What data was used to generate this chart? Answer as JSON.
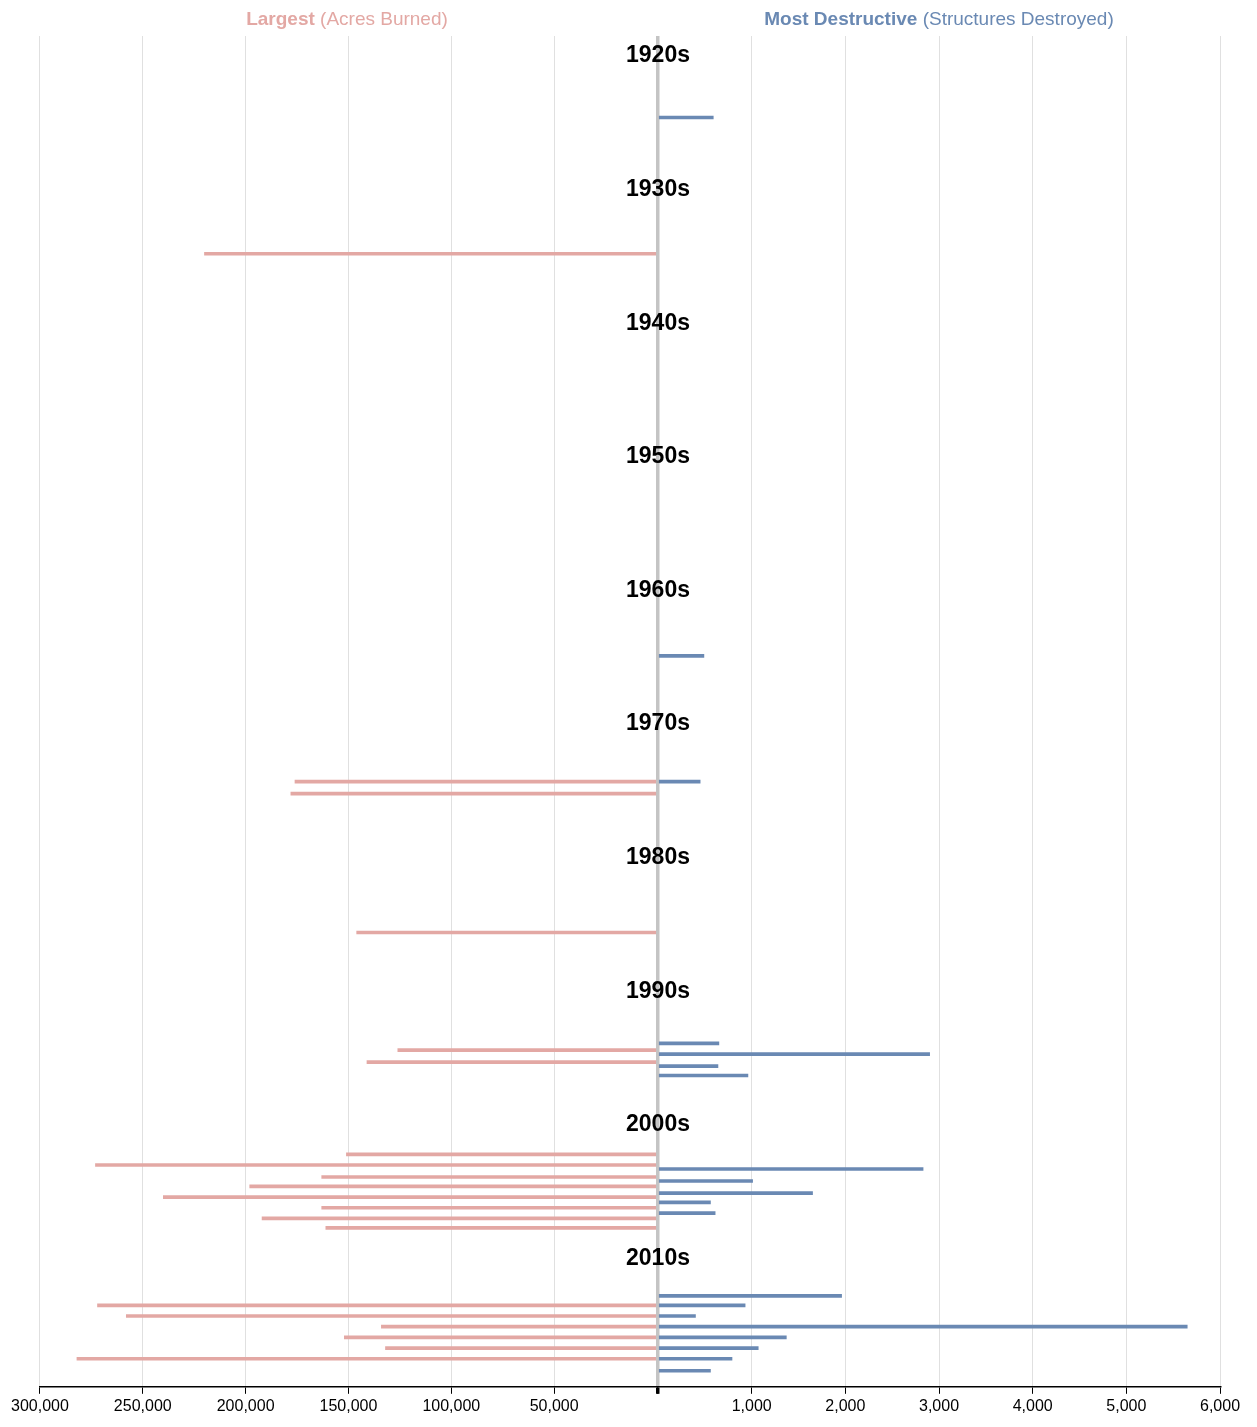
{
  "chart_data": [
    {
      "type": "bar",
      "orientation": "horizontal",
      "title": "Largest",
      "subtitle": "(Acres Burned)",
      "series": [
        {
          "color": "#e3a8a4",
          "x": [
            1934.8,
            1974.3,
            1975.2,
            1985.6,
            1994.4,
            1995.3,
            2002.2,
            2003.0,
            2003.9,
            2004.6,
            2005.4,
            2006.2,
            2007.0,
            2007.7,
            2013.5,
            2014.3,
            2015.1,
            2015.9,
            2016.7,
            2017.5
          ],
          "values": [
            220000,
            176000,
            178000,
            146000,
            126000,
            141000,
            151000,
            273000,
            163000,
            198000,
            240000,
            163000,
            192000,
            161000,
            272000,
            258000,
            134000,
            152000,
            132000,
            282000
          ]
        }
      ],
      "xlim": [
        300000,
        0
      ],
      "xticks": [
        {
          "value": 300000,
          "label": "300,000"
        },
        {
          "value": 250000,
          "label": "250,000"
        },
        {
          "value": 200000,
          "label": "200,000"
        },
        {
          "value": 150000,
          "label": "150,000"
        },
        {
          "value": 100000,
          "label": "100,000"
        },
        {
          "value": 50000,
          "label": "50,000"
        },
        {
          "value": 0,
          "label": null
        }
      ],
      "ylim": [
        2019.6,
        1918.5
      ],
      "tick_labels": "x",
      "grid": "x"
    },
    {
      "type": "bar",
      "orientation": "horizontal",
      "title": "Most Destructive",
      "subtitle": "(Structures Destroyed)",
      "series": [
        {
          "color": "#6a89b3",
          "x": [
            1924.6,
            1964.9,
            1974.3,
            1993.9,
            1994.7,
            1995.6,
            1996.3,
            2003.3,
            2004.2,
            2005.1,
            2005.8,
            2006.6,
            2012.8,
            2013.5,
            2014.3,
            2015.1,
            2015.9,
            2016.7,
            2017.5,
            2018.4
          ],
          "values": [
            590,
            490,
            450,
            650,
            2900,
            640,
            960,
            2830,
            1010,
            1650,
            560,
            610,
            1960,
            930,
            400,
            5650,
            1370,
            1070,
            790,
            560
          ]
        }
      ],
      "xlim": [
        0,
        6000
      ],
      "xticks": [
        {
          "value": 0,
          "label": null
        },
        {
          "value": 1000,
          "label": "1,000"
        },
        {
          "value": 2000,
          "label": "2,000"
        },
        {
          "value": 3000,
          "label": "3,000"
        },
        {
          "value": 4000,
          "label": "4,000"
        },
        {
          "value": 5000,
          "label": "5,000"
        },
        {
          "value": 6000,
          "label": "6,000"
        }
      ],
      "ylim": [
        2019.6,
        1918.5
      ],
      "yticks": [
        {
          "value": 1920,
          "label": "1920s"
        },
        {
          "value": 1930,
          "label": "1930s"
        },
        {
          "value": 1940,
          "label": "1940s"
        },
        {
          "value": 1950,
          "label": "1950s"
        },
        {
          "value": 1960,
          "label": "1960s"
        },
        {
          "value": 1970,
          "label": "1970s"
        },
        {
          "value": 1980,
          "label": "1980s"
        },
        {
          "value": 1990,
          "label": "1990s"
        },
        {
          "value": 2000,
          "label": "2000s"
        },
        {
          "value": 2010,
          "label": "2010s"
        }
      ],
      "grid": "x"
    }
  ]
}
